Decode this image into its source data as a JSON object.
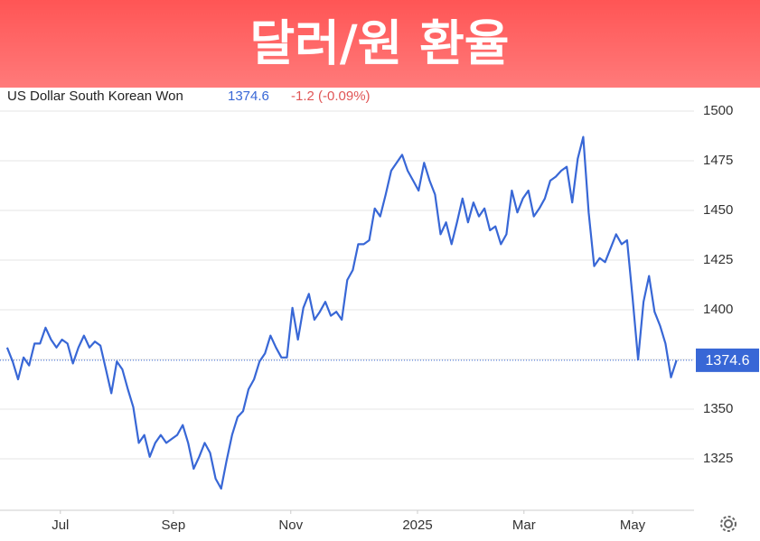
{
  "chart_data": {
    "type": "line",
    "title": "달러/원 환율",
    "change_text": "-1.2 (-0.09%)",
    "series": [
      {
        "name": "US Dollar South Korean Won",
        "color": "#3867d6",
        "values": [
          1381,
          1374,
          1365,
          1376,
          1372,
          1383,
          1383,
          1391,
          1385,
          1381,
          1385,
          1383,
          1373,
          1381,
          1387,
          1381,
          1384,
          1382,
          1370,
          1358,
          1374,
          1370,
          1360,
          1351,
          1333,
          1337,
          1326,
          1333,
          1337,
          1333,
          1335,
          1337,
          1342,
          1333,
          1320,
          1326,
          1333,
          1328,
          1315,
          1310,
          1324,
          1337,
          1346,
          1349,
          1360,
          1365,
          1374,
          1378,
          1387,
          1381,
          1376,
          1376,
          1401,
          1385,
          1401,
          1408,
          1395,
          1399,
          1404,
          1397,
          1399,
          1395,
          1415,
          1420,
          1433,
          1433,
          1435,
          1451,
          1447,
          1458,
          1470,
          1474,
          1478,
          1470,
          1465,
          1460,
          1474,
          1465,
          1458,
          1438,
          1444,
          1433,
          1444,
          1456,
          1444,
          1454,
          1447,
          1451,
          1440,
          1442,
          1433,
          1438,
          1460,
          1449,
          1456,
          1460,
          1447,
          1451,
          1456,
          1465,
          1467,
          1470,
          1472,
          1454,
          1476,
          1487,
          1449,
          1422,
          1426,
          1424,
          1431,
          1438,
          1433,
          1435,
          1406,
          1375,
          1404,
          1417,
          1399,
          1392,
          1383,
          1366,
          1374.6
        ]
      }
    ],
    "xlim": [
      -1.3,
      125.2
    ],
    "xticks": [
      {
        "value": 9.7,
        "label": "Jul"
      },
      {
        "value": 30.3,
        "label": "Sep"
      },
      {
        "value": 51.7,
        "label": "Nov"
      },
      {
        "value": 74.8,
        "label": "2025"
      },
      {
        "value": 94.2,
        "label": "Mar"
      },
      {
        "value": 114.0,
        "label": "May"
      }
    ],
    "ylim": [
      1299.1,
      1511.8
    ],
    "yticks": [
      1325,
      1350,
      1375,
      1400,
      1425,
      1450,
      1475,
      1500
    ],
    "grid": true
  }
}
